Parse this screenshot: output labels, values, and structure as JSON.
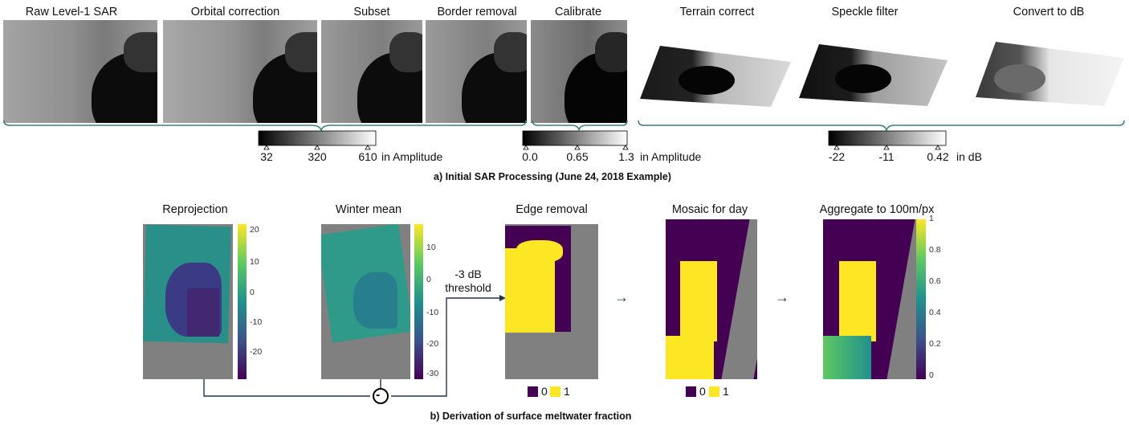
{
  "section_a": {
    "stages": [
      "Raw Level-1 SAR",
      "Orbital correction",
      "Subset",
      "Border removal",
      "Calibrate",
      "Terrain correct",
      "Speckle filter",
      "Convert to dB"
    ],
    "colorbars": [
      {
        "ticks": [
          "32",
          "320",
          "610"
        ],
        "unit": "in Amplitude"
      },
      {
        "ticks": [
          "0.0",
          "0.65",
          "1.3"
        ],
        "unit": "in Amplitude"
      },
      {
        "ticks": [
          "-22",
          "-11",
          "0.42"
        ],
        "unit": "in dB"
      }
    ],
    "caption": "a) Initial SAR Processing (June 24, 2018 Example)"
  },
  "section_b": {
    "stages": [
      "Reprojection",
      "Winter mean",
      "Edge removal",
      "Mosaic for day",
      "Aggregate to 100m/px"
    ],
    "reprojection_ticks": [
      "20",
      "10",
      "0",
      "-10",
      "-20"
    ],
    "winter_mean_ticks": [
      "10",
      "0",
      "-10",
      "-20",
      "-30"
    ],
    "fraction_ticks": [
      "1",
      "0.8",
      "0.6",
      "0.4",
      "0.2",
      "0"
    ],
    "threshold_label": [
      "-3 dB",
      "threshold"
    ],
    "operator_symbol": "-",
    "arrow_symbol": "→",
    "legend": [
      "0",
      "1"
    ],
    "caption": "b) Derivation of surface meltwater fraction"
  },
  "colors": {
    "viridis_dark": "#440154",
    "viridis_yellow": "#fde725",
    "teal": "#21918c",
    "gray_background": "#808080",
    "bracket": "#3e7f86",
    "arrow": "#1f3550"
  }
}
